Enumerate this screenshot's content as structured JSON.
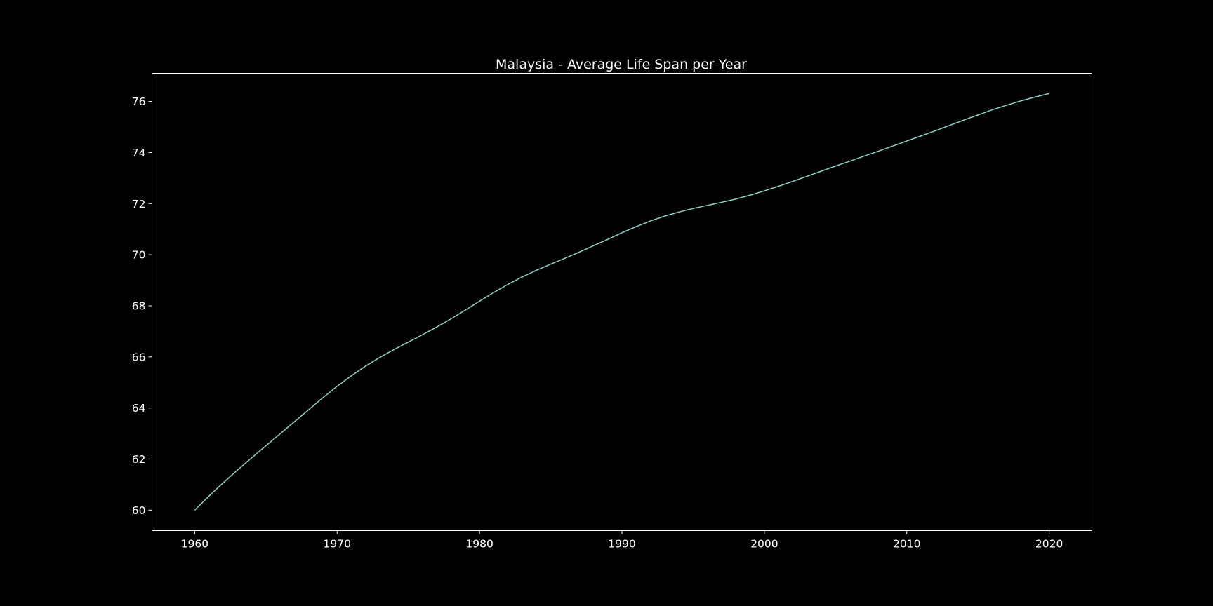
{
  "colors": {
    "background": "#000000",
    "axes": "#ffffff",
    "text": "#ffffff",
    "line": "#8dd3c7"
  },
  "chart_data": {
    "type": "line",
    "title": "Malaysia - Average Life Span per Year",
    "xlabel": "",
    "ylabel": "",
    "xlim": [
      1957,
      2023
    ],
    "ylim": [
      59.2,
      77.1
    ],
    "xticks": [
      1960,
      1970,
      1980,
      1990,
      2000,
      2010,
      2020
    ],
    "yticks": [
      60,
      62,
      64,
      66,
      68,
      70,
      72,
      74,
      76
    ],
    "grid": false,
    "legend": "none",
    "series": [
      {
        "x": [
          1960,
          1961,
          1962,
          1963,
          1964,
          1965,
          1966,
          1967,
          1968,
          1969,
          1970,
          1971,
          1972,
          1973,
          1974,
          1975,
          1976,
          1977,
          1978,
          1979,
          1980,
          1981,
          1982,
          1983,
          1984,
          1985,
          1986,
          1987,
          1988,
          1989,
          1990,
          1991,
          1992,
          1993,
          1994,
          1995,
          1996,
          1997,
          1998,
          1999,
          2000,
          2001,
          2002,
          2003,
          2004,
          2005,
          2006,
          2007,
          2008,
          2009,
          2010,
          2011,
          2012,
          2013,
          2014,
          2015,
          2016,
          2017,
          2018,
          2019,
          2020
        ],
        "y": [
          60.0,
          60.55,
          61.07,
          61.57,
          62.05,
          62.52,
          62.99,
          63.46,
          63.93,
          64.4,
          64.85,
          65.26,
          65.64,
          65.98,
          66.29,
          66.58,
          66.87,
          67.17,
          67.49,
          67.83,
          68.18,
          68.52,
          68.84,
          69.13,
          69.39,
          69.63,
          69.86,
          70.1,
          70.35,
          70.6,
          70.86,
          71.1,
          71.32,
          71.51,
          71.67,
          71.81,
          71.93,
          72.05,
          72.18,
          72.33,
          72.5,
          72.68,
          72.87,
          73.07,
          73.27,
          73.47,
          73.66,
          73.86,
          74.05,
          74.25,
          74.45,
          74.65,
          74.85,
          75.06,
          75.27,
          75.47,
          75.67,
          75.85,
          76.02,
          76.17,
          76.31
        ]
      }
    ]
  }
}
